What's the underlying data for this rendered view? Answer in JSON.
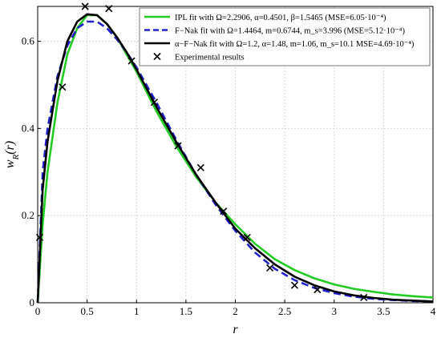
{
  "chart_data": {
    "type": "line",
    "xlabel": "r",
    "ylabel": "w_R(r)",
    "xlim": [
      0,
      4
    ],
    "ylim": [
      0,
      0.68
    ],
    "xticks": [
      "0",
      "0.5",
      "1",
      "1.5",
      "2",
      "2.5",
      "3",
      "3.5",
      "4"
    ],
    "yticks": [
      "0",
      "0.2",
      "0.4",
      "0.6"
    ],
    "grid": true,
    "legend_position": "top-right",
    "series": [
      {
        "name": "IPL fit with Ω=2.2906, α=0.4501, β=1.5465 (MSE=6.05·10⁻⁴)",
        "color": "#22cc22",
        "style": "solid",
        "x": [
          0.0,
          0.05,
          0.1,
          0.2,
          0.3,
          0.4,
          0.5,
          0.6,
          0.7,
          0.8,
          0.9,
          1.0,
          1.2,
          1.4,
          1.6,
          1.8,
          2.0,
          2.2,
          2.4,
          2.6,
          2.8,
          3.0,
          3.2,
          3.4,
          3.6,
          3.8,
          4.0
        ],
        "y": [
          0.0,
          0.18,
          0.3,
          0.46,
          0.57,
          0.63,
          0.66,
          0.66,
          0.64,
          0.61,
          0.57,
          0.53,
          0.44,
          0.36,
          0.29,
          0.23,
          0.18,
          0.135,
          0.1,
          0.075,
          0.056,
          0.042,
          0.032,
          0.025,
          0.019,
          0.015,
          0.012
        ]
      },
      {
        "name": "F−Nak fit with Ω=1.4464, m=0.6744, m_s=3.996 (MSE=5.12·10⁻⁴)",
        "color": "#2222cc",
        "style": "dashed",
        "x": [
          0.0,
          0.05,
          0.1,
          0.2,
          0.3,
          0.4,
          0.5,
          0.6,
          0.7,
          0.8,
          0.9,
          1.0,
          1.2,
          1.4,
          1.6,
          1.8,
          2.0,
          2.2,
          2.4,
          2.6,
          2.8,
          3.0,
          3.2,
          3.4,
          3.6,
          3.8,
          4.0
        ],
        "y": [
          0.0,
          0.3,
          0.4,
          0.52,
          0.59,
          0.63,
          0.645,
          0.645,
          0.63,
          0.605,
          0.575,
          0.54,
          0.46,
          0.375,
          0.295,
          0.225,
          0.165,
          0.115,
          0.078,
          0.052,
          0.034,
          0.022,
          0.014,
          0.009,
          0.006,
          0.004,
          0.003
        ]
      },
      {
        "name": "α−F−Nak fit with Ω=1.2, α=1.48, m=1.06, m_s=10.1 MSE=4.69·10⁻⁴)",
        "color": "#000000",
        "style": "solid",
        "x": [
          0.0,
          0.05,
          0.1,
          0.2,
          0.3,
          0.4,
          0.5,
          0.6,
          0.7,
          0.8,
          0.9,
          1.0,
          1.2,
          1.4,
          1.6,
          1.8,
          2.0,
          2.2,
          2.4,
          2.6,
          2.8,
          3.0,
          3.2,
          3.4,
          3.6,
          3.8,
          4.0
        ],
        "y": [
          0.0,
          0.26,
          0.37,
          0.51,
          0.6,
          0.645,
          0.662,
          0.66,
          0.64,
          0.61,
          0.575,
          0.535,
          0.45,
          0.37,
          0.295,
          0.23,
          0.17,
          0.125,
          0.088,
          0.06,
          0.04,
          0.026,
          0.017,
          0.011,
          0.007,
          0.005,
          0.003
        ]
      },
      {
        "name": "Experimental results",
        "color": "#000000",
        "style": "marker-x",
        "x": [
          0.02,
          0.25,
          0.48,
          0.72,
          0.95,
          1.18,
          1.42,
          1.65,
          1.88,
          2.12,
          2.35,
          2.6,
          2.83,
          3.3
        ],
        "y": [
          0.15,
          0.495,
          0.68,
          0.675,
          0.555,
          0.46,
          0.36,
          0.31,
          0.21,
          0.15,
          0.08,
          0.04,
          0.03,
          0.012
        ]
      }
    ]
  }
}
